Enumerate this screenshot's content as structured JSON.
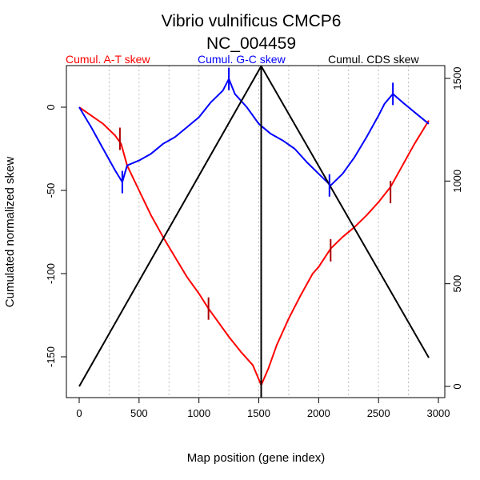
{
  "chart_data": {
    "type": "line",
    "title": "Vibrio vulnificus CMCP6",
    "subtitle": "NC_004459",
    "xlabel": "Map position (gene index)",
    "ylabel": "Cumulated normalized skew",
    "xlim": [
      0,
      3000
    ],
    "ylim_left": [
      -175,
      25
    ],
    "ylim_right": [
      0,
      1500
    ],
    "x_ticks": [
      0,
      500,
      1000,
      1500,
      2000,
      2500,
      3000
    ],
    "y_ticks_left": [
      0,
      -50,
      -100,
      -150
    ],
    "y_ticks_right": [
      0,
      500,
      1000,
      1500
    ],
    "grid": "vertical dotted lines every 250 genes",
    "legend": [
      "Cumul. A-T skew",
      "Cumul. G-C skew",
      "Cumul. CDS skew"
    ],
    "colors": {
      "at": "#ff0000",
      "gc": "#0000ff",
      "cds": "#000000",
      "marker_at": "#aa0000"
    },
    "series": [
      {
        "name": "Cumul. A-T skew",
        "axis": "left",
        "x": [
          0,
          100,
          200,
          300,
          350,
          400,
          500,
          600,
          700,
          800,
          900,
          1000,
          1080,
          1150,
          1250,
          1350,
          1450,
          1520,
          1580,
          1650,
          1750,
          1850,
          1950,
          2000,
          2100,
          2200,
          2300,
          2400,
          2500,
          2600,
          2700,
          2800,
          2920
        ],
        "y": [
          0,
          -5,
          -10,
          -17,
          -22,
          -35,
          -50,
          -65,
          -78,
          -90,
          -102,
          -112,
          -121,
          -128,
          -138,
          -147,
          -155,
          -167,
          -157,
          -143,
          -127,
          -113,
          -100,
          -96,
          -85,
          -78,
          -72,
          -65,
          -57,
          -48,
          -35,
          -22,
          -8
        ]
      },
      {
        "name": "Cumul. G-C skew",
        "axis": "left",
        "x": [
          0,
          100,
          200,
          300,
          360,
          400,
          500,
          600,
          700,
          800,
          900,
          1000,
          1100,
          1200,
          1250,
          1300,
          1400,
          1500,
          1600,
          1700,
          1800,
          1900,
          2000,
          2100,
          2200,
          2300,
          2400,
          2500,
          2550,
          2620,
          2700,
          2800,
          2920
        ],
        "y": [
          0,
          -12,
          -25,
          -38,
          -45,
          -35,
          -32,
          -28,
          -22,
          -18,
          -12,
          -6,
          3,
          10,
          17,
          8,
          0,
          -10,
          -16,
          -20,
          -25,
          -33,
          -40,
          -47,
          -40,
          -30,
          -18,
          -5,
          2,
          8,
          3,
          -3,
          -10
        ]
      },
      {
        "name": "Cumul. CDS skew",
        "axis": "right",
        "x": [
          0,
          1520,
          2920
        ],
        "y": [
          0,
          1560,
          140
        ]
      }
    ],
    "markers": [
      {
        "series": "Cumul. A-T skew",
        "x": 340,
        "y": -19
      },
      {
        "series": "Cumul. A-T skew",
        "x": 1080,
        "y": -121
      },
      {
        "series": "Cumul. A-T skew",
        "x": 2100,
        "y": -86
      },
      {
        "series": "Cumul. A-T skew",
        "x": 2600,
        "y": -51
      },
      {
        "series": "Cumul. G-C skew",
        "x": 360,
        "y": -45
      },
      {
        "series": "Cumul. G-C skew",
        "x": 1250,
        "y": 17
      },
      {
        "series": "Cumul. G-C skew",
        "x": 2090,
        "y": -47
      },
      {
        "series": "Cumul. G-C skew",
        "x": 2620,
        "y": 8
      }
    ],
    "vline_x": 1520
  }
}
